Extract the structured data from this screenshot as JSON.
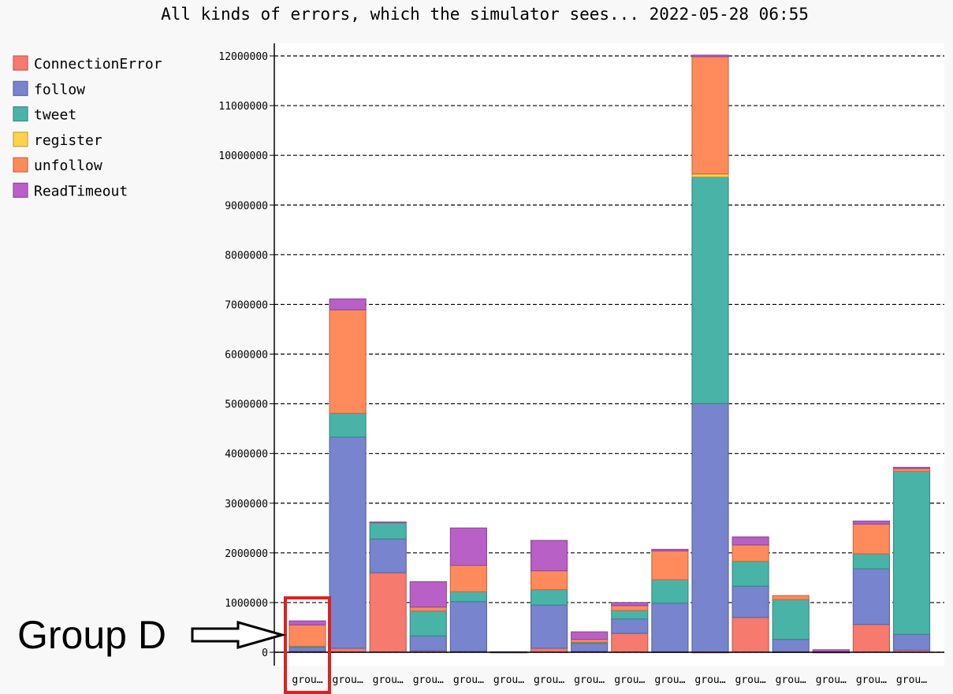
{
  "chart_data": {
    "type": "bar",
    "stacked": true,
    "title": "All kinds of errors, which the simulator sees... 2022-05-28 06:55",
    "xlabel": "",
    "ylabel": "",
    "ylim": [
      0,
      12000000
    ],
    "yticks": [
      "0",
      "1000000",
      "2000000",
      "3000000",
      "4000000",
      "5000000",
      "6000000",
      "7000000",
      "8000000",
      "9000000",
      "10000000",
      "11000000",
      "12000000"
    ],
    "grid": "horizontal dashed",
    "legend_position": "top-left",
    "categories": [
      "grou…",
      "grou…",
      "grou…",
      "grou…",
      "grou…",
      "grou…",
      "grou…",
      "grou…",
      "grou…",
      "grou…",
      "grou…",
      "grou…",
      "grou…",
      "grou…",
      "grou…",
      "grou…"
    ],
    "series": [
      {
        "name": "ConnectionError",
        "color": "#f67a6e",
        "values": [
          20000,
          80000,
          1600000,
          30000,
          20000,
          5000,
          80000,
          20000,
          380000,
          10000,
          5000,
          700000,
          10000,
          5000,
          560000,
          40000
        ]
      },
      {
        "name": "follow",
        "color": "#7884ce",
        "values": [
          80000,
          4250000,
          680000,
          300000,
          1000000,
          5000,
          870000,
          160000,
          290000,
          980000,
          5000000,
          630000,
          250000,
          5000,
          1120000,
          320000
        ]
      },
      {
        "name": "tweet",
        "color": "#4ab3a8",
        "values": [
          20000,
          480000,
          330000,
          500000,
          200000,
          0,
          310000,
          20000,
          170000,
          470000,
          4560000,
          500000,
          800000,
          0,
          300000,
          3280000
        ]
      },
      {
        "name": "register",
        "color": "#fdd24d",
        "values": [
          0,
          0,
          0,
          0,
          0,
          0,
          0,
          0,
          0,
          0,
          60000,
          0,
          0,
          0,
          0,
          0
        ]
      },
      {
        "name": "unfollow",
        "color": "#ff8b5c",
        "values": [
          430000,
          2080000,
          0,
          80000,
          530000,
          0,
          380000,
          60000,
          100000,
          580000,
          2360000,
          330000,
          80000,
          0,
          600000,
          60000
        ]
      },
      {
        "name": "ReadTimeout",
        "color": "#b960c6",
        "values": [
          80000,
          220000,
          10000,
          510000,
          750000,
          0,
          610000,
          150000,
          60000,
          30000,
          30000,
          160000,
          0,
          40000,
          60000,
          20000
        ]
      }
    ]
  },
  "annotation": {
    "label": "Group D",
    "highlight_index": 0,
    "highlight_color": "#e02020"
  }
}
